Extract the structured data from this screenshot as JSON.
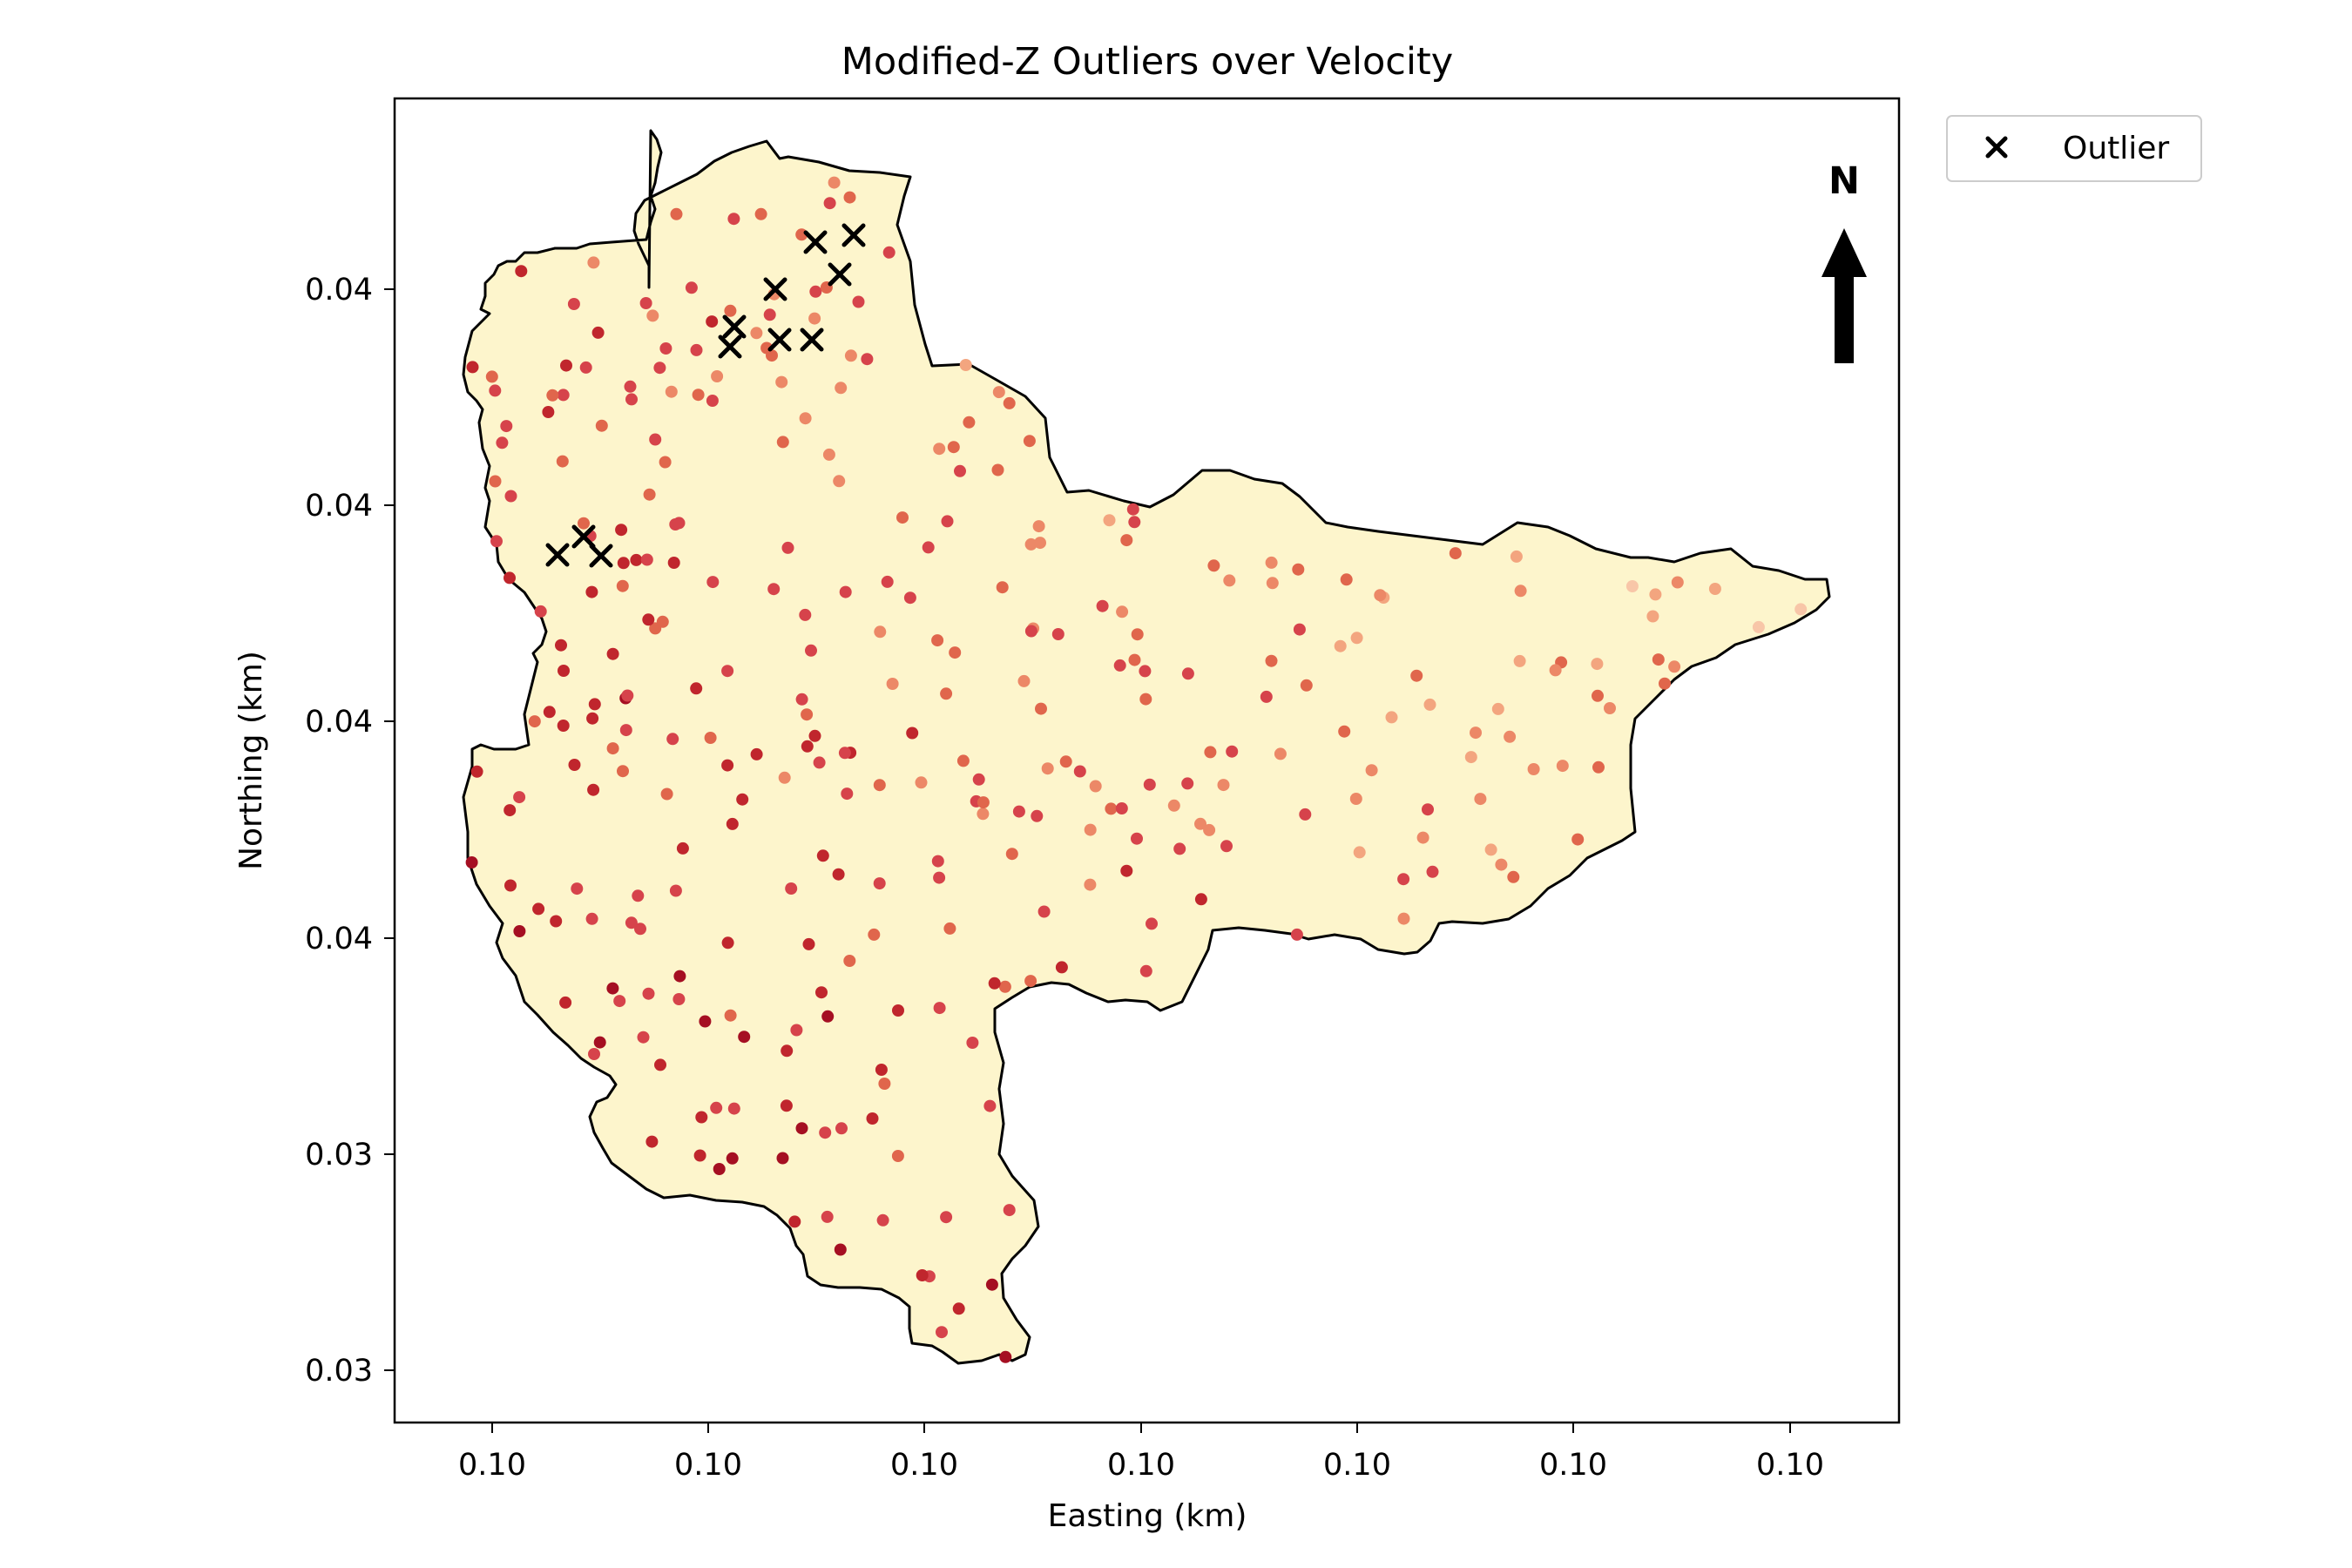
{
  "chart_data": {
    "type": "scatter",
    "title": "Modified-Z Outliers over Velocity",
    "xlabel": "Easting (km)",
    "ylabel": "Northing (km)",
    "x_tick_labels": [
      "0.10",
      "0.10",
      "0.10",
      "0.10",
      "0.10",
      "0.10",
      "0.10"
    ],
    "y_tick_labels": [
      "0.04",
      "0.04",
      "0.04",
      "0.04",
      "0.03",
      "0.03"
    ],
    "legend": {
      "position": "outside-top-right",
      "entries": [
        "Outlier"
      ]
    },
    "north_arrow_label": "N",
    "colors": {
      "basin_fill": "#fdf5cc",
      "basin_edge": "#000000",
      "outlier_marker": "#000000",
      "colormap_low": "#e8eef5",
      "colormap_high": "#a50f22"
    },
    "grid": false
  }
}
